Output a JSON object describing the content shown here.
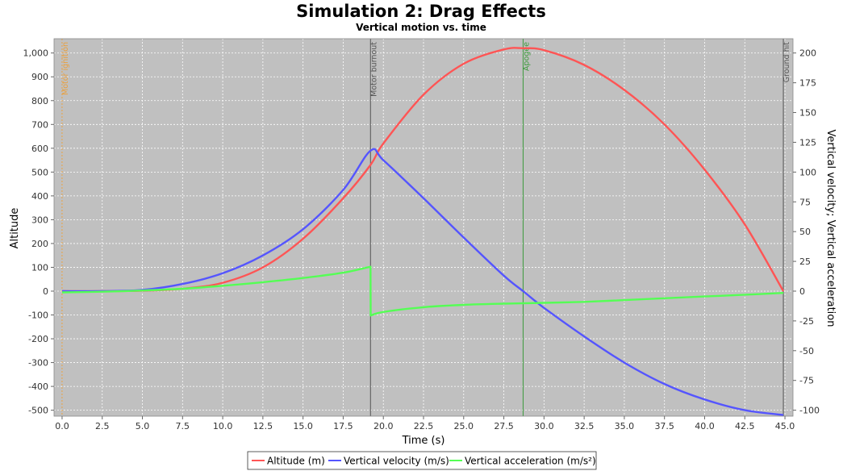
{
  "chart_data": {
    "type": "line",
    "title": "Simulation 2: Drag Effects",
    "subtitle": "Vertical motion vs. time",
    "xlabel": "Time (s)",
    "ylabel_left": "Altitude",
    "ylabel_right": "Vertical velocity; Vertical acceleration",
    "xlim": [
      -0.5,
      45.5
    ],
    "ylim_left": [
      -525,
      1060
    ],
    "ylim_right": [
      -105,
      212
    ],
    "x_ticks": [
      "0.0",
      "2.5",
      "5.0",
      "7.5",
      "10.0",
      "12.5",
      "15.0",
      "17.5",
      "20.0",
      "22.5",
      "25.0",
      "27.5",
      "30.0",
      "32.5",
      "35.0",
      "37.5",
      "40.0",
      "42.5",
      "45.0"
    ],
    "y_left_ticks": [
      "-500",
      "-400",
      "-300",
      "-200",
      "-100",
      "0",
      "100",
      "200",
      "300",
      "400",
      "500",
      "600",
      "700",
      "800",
      "900",
      "1,000"
    ],
    "y_right_ticks": [
      "-100",
      "-75",
      "-50",
      "-25",
      "0",
      "25",
      "50",
      "75",
      "100",
      "125",
      "150",
      "175",
      "200"
    ],
    "grid": true,
    "legend_position": "bottom",
    "events": [
      {
        "label": "Motor ignition",
        "x": 0,
        "color": "#e8a040"
      },
      {
        "label": "Motor burnout",
        "x": 19.2,
        "color": "#555555"
      },
      {
        "label": "Apogee",
        "x": 28.7,
        "color": "#3c9a3c"
      },
      {
        "label": "Ground hit",
        "x": 44.9,
        "color": "#555555"
      }
    ],
    "series": [
      {
        "name": "Altitude (m)",
        "axis": "left",
        "color": "#ff5555",
        "x": [
          0,
          2.5,
          5,
          7.5,
          10,
          12.5,
          15,
          17.5,
          19.2,
          20,
          22.5,
          25,
          27.5,
          28.7,
          30,
          32.5,
          35,
          37.5,
          40,
          42.5,
          44.9
        ],
        "y": [
          0,
          0,
          2,
          10,
          35,
          100,
          220,
          390,
          530,
          620,
          825,
          955,
          1015,
          1020,
          1012,
          950,
          845,
          700,
          510,
          280,
          0
        ]
      },
      {
        "name": "Vertical velocity (m/s)",
        "axis": "right",
        "color": "#5555ff",
        "x": [
          0,
          2.5,
          5,
          7.5,
          10,
          12.5,
          15,
          17.5,
          19.2,
          20,
          22.5,
          25,
          27.5,
          28.7,
          30,
          32.5,
          35,
          37.5,
          40,
          42.5,
          44.9
        ],
        "y": [
          0,
          0,
          1,
          6,
          15,
          30,
          52,
          85,
          118,
          110,
          78,
          45,
          13,
          0,
          -14,
          -38,
          -60,
          -78,
          -91,
          -100,
          -104
        ]
      },
      {
        "name": "Vertical acceleration (m/s²)",
        "axis": "right",
        "color": "#55ff55",
        "x": [
          0,
          2.5,
          5,
          7.5,
          10,
          12.5,
          15,
          17.5,
          19.2,
          19.21,
          20,
          22.5,
          25,
          27.5,
          30,
          32.5,
          35,
          37.5,
          40,
          42.5,
          44.9
        ],
        "y": [
          -1,
          -0.5,
          0.5,
          2,
          4.5,
          7.5,
          11,
          15.5,
          20.5,
          -20.5,
          -17.5,
          -13.5,
          -11.5,
          -10.5,
          -9.8,
          -9,
          -7.5,
          -6,
          -4.5,
          -3,
          -1.5
        ]
      }
    ]
  }
}
